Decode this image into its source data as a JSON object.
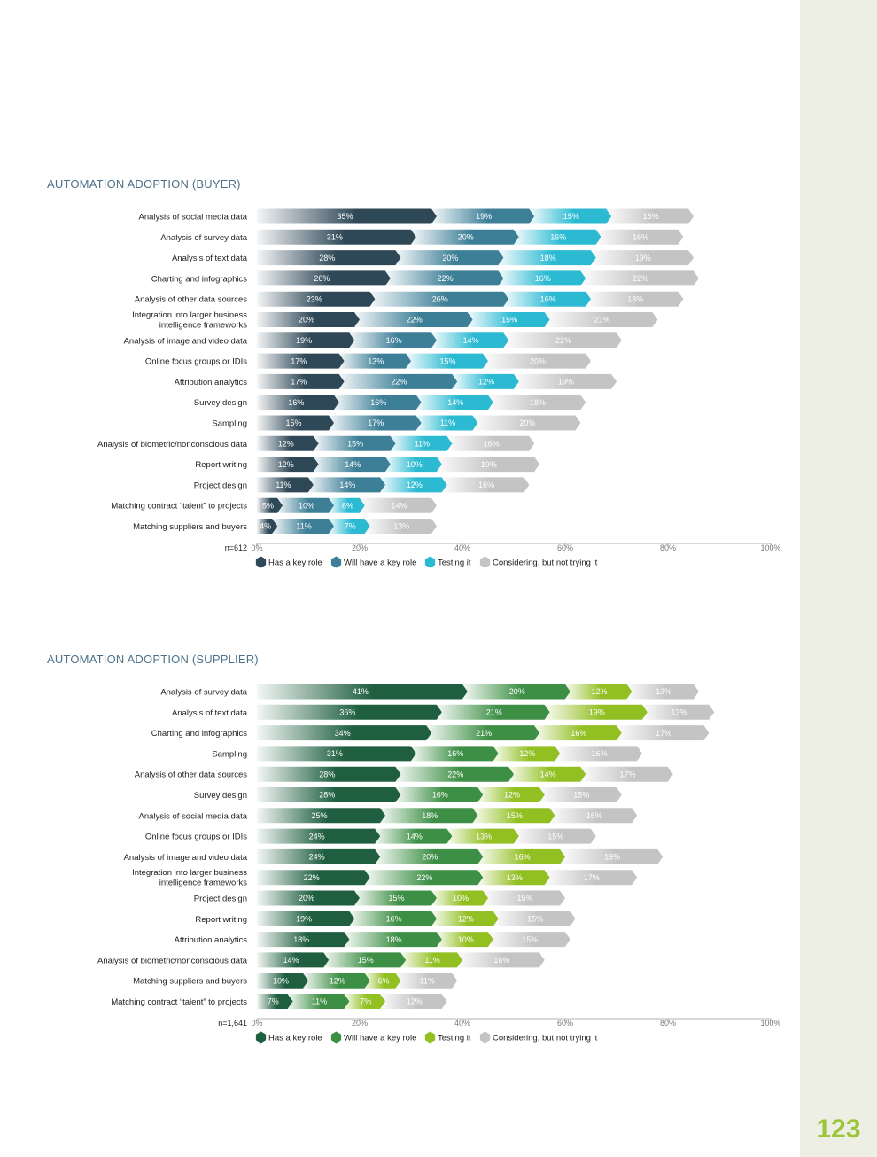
{
  "page": {
    "number": "123"
  },
  "chart_data": [
    {
      "id": "buyer",
      "type": "bar",
      "orientation": "horizontal",
      "stacked": true,
      "title": "AUTOMATION ADOPTION (BUYER)",
      "sample_label": "n=612",
      "categories": [
        "Analysis of social media data",
        "Analysis of survey data",
        "Analysis of text data",
        "Charting and infographics",
        "Analysis of other data sources",
        "Integration into larger business intelligence frameworks",
        "Analysis of image and video data",
        "Online focus groups or IDIs",
        "Attribution analytics",
        "Survey design",
        "Sampling",
        "Analysis of biometric/nonconscious data",
        "Report writing",
        "Project design",
        "Matching contract “talent” to projects",
        "Matching suppliers and buyers"
      ],
      "category_lines": [
        [
          "Analysis of social media data"
        ],
        [
          "Analysis of survey data"
        ],
        [
          "Analysis of text data"
        ],
        [
          "Charting and infographics"
        ],
        [
          "Analysis of other data sources"
        ],
        [
          "Integration into larger business",
          "intelligence frameworks"
        ],
        [
          "Analysis of image and video data"
        ],
        [
          "Online focus groups or IDIs"
        ],
        [
          "Attribution analytics"
        ],
        [
          "Survey design"
        ],
        [
          "Sampling"
        ],
        [
          "Analysis of biometric/nonconscious data"
        ],
        [
          "Report writing"
        ],
        [
          "Project design"
        ],
        [
          "Matching contract “talent” to projects"
        ],
        [
          "Matching suppliers and buyers"
        ]
      ],
      "series": [
        {
          "name": "Has a key role",
          "color": "#2f4858",
          "values": [
            35,
            31,
            28,
            26,
            23,
            20,
            19,
            17,
            17,
            16,
            15,
            12,
            12,
            11,
            5,
            4
          ]
        },
        {
          "name": "Will have a key role",
          "color": "#3d7f97",
          "values": [
            19,
            20,
            20,
            22,
            26,
            22,
            16,
            13,
            22,
            16,
            17,
            15,
            14,
            14,
            10,
            11
          ]
        },
        {
          "name": "Testing it",
          "color": "#2bbad2",
          "values": [
            15,
            16,
            18,
            16,
            16,
            15,
            14,
            15,
            12,
            14,
            11,
            11,
            10,
            12,
            6,
            7
          ]
        },
        {
          "name": "Considering, but not trying it",
          "color": "#c4c4c4",
          "values": [
            16,
            16,
            19,
            22,
            18,
            21,
            22,
            20,
            19,
            18,
            20,
            16,
            19,
            16,
            14,
            13
          ]
        }
      ],
      "xlim": [
        0,
        100
      ],
      "xticks": [
        "0%",
        "20%",
        "40%",
        "60%",
        "80%",
        "100%"
      ],
      "legend_position": "bottom-left"
    },
    {
      "id": "supplier",
      "type": "bar",
      "orientation": "horizontal",
      "stacked": true,
      "title": "AUTOMATION ADOPTION (SUPPLIER)",
      "sample_label": "n=1,641",
      "categories": [
        "Analysis of survey data",
        "Analysis of text data",
        "Charting and infographics",
        "Sampling",
        "Analysis of other data sources",
        "Survey design",
        "Analysis of social media data",
        "Online focus groups or IDIs",
        "Analysis of image and video data",
        "Integration into larger business intelligence frameworks",
        "Project design",
        "Report writing",
        "Attribution analytics",
        "Analysis of biometric/nonconscious data",
        "Matching suppliers and buyers",
        "Matching contract “talent” to projects"
      ],
      "category_lines": [
        [
          "Analysis of survey data"
        ],
        [
          "Analysis of text data"
        ],
        [
          "Charting and infographics"
        ],
        [
          "Sampling"
        ],
        [
          "Analysis of other data sources"
        ],
        [
          "Survey design"
        ],
        [
          "Analysis of social media data"
        ],
        [
          "Online focus groups or IDIs"
        ],
        [
          "Analysis of image and video data"
        ],
        [
          "Integration into larger business",
          "intelligence frameworks"
        ],
        [
          "Project design"
        ],
        [
          "Report writing"
        ],
        [
          "Attribution analytics"
        ],
        [
          "Analysis of biometric/nonconscious data"
        ],
        [
          "Matching suppliers and buyers"
        ],
        [
          "Matching contract “talent” to projects"
        ]
      ],
      "series": [
        {
          "name": "Has a key role",
          "color": "#1f5f40",
          "values": [
            41,
            36,
            34,
            31,
            28,
            28,
            25,
            24,
            24,
            22,
            20,
            19,
            18,
            14,
            10,
            7
          ]
        },
        {
          "name": "Will have a key role",
          "color": "#3d8f45",
          "values": [
            20,
            21,
            21,
            16,
            22,
            16,
            18,
            14,
            20,
            22,
            15,
            16,
            18,
            15,
            12,
            11
          ]
        },
        {
          "name": "Testing it",
          "color": "#92bf22",
          "values": [
            12,
            19,
            16,
            12,
            14,
            12,
            15,
            13,
            16,
            13,
            10,
            12,
            10,
            11,
            6,
            7
          ]
        },
        {
          "name": "Considering, but not trying it",
          "color": "#c4c4c4",
          "values": [
            13,
            13,
            17,
            16,
            17,
            15,
            16,
            15,
            19,
            17,
            15,
            15,
            15,
            16,
            11,
            12
          ]
        }
      ],
      "xlim": [
        0,
        100
      ],
      "xticks": [
        "0%",
        "20%",
        "40%",
        "60%",
        "80%",
        "100%"
      ],
      "legend_position": "bottom-left"
    }
  ]
}
